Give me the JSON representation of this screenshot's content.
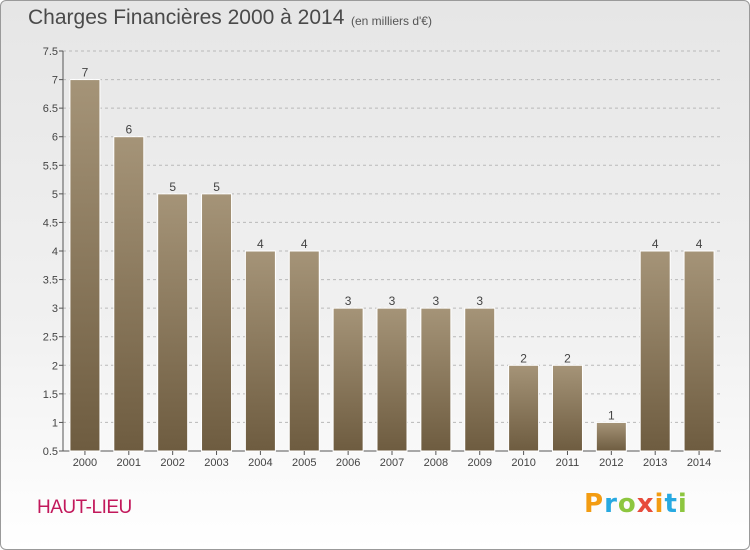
{
  "header": {
    "title": "Charges Financières 2000 à 2014",
    "unit": "(en milliers d'€)"
  },
  "commune": "HAUT-LIEU",
  "logo": {
    "text": "Proxiti",
    "letters": [
      {
        "ch": "P",
        "color": "#f39c12"
      },
      {
        "ch": "r",
        "color": "#27a9e1"
      },
      {
        "ch": "o",
        "color": "#8dc63f"
      },
      {
        "ch": "x",
        "color": "#e74c3c"
      },
      {
        "ch": "i",
        "color": "#f39c12"
      },
      {
        "ch": "t",
        "color": "#27a9e1"
      },
      {
        "ch": "i",
        "color": "#8dc63f"
      }
    ]
  },
  "colors": {
    "bar_top": "#a59478",
    "bar_bottom": "#6e5c40",
    "grid": "#b9b9b9",
    "axis": "#555555"
  },
  "chart_data": {
    "type": "bar",
    "categories": [
      "2000",
      "2001",
      "2002",
      "2003",
      "2004",
      "2005",
      "2006",
      "2007",
      "2008",
      "2009",
      "2010",
      "2011",
      "2012",
      "2013",
      "2014"
    ],
    "values": [
      7,
      6,
      5,
      5,
      4,
      4,
      3,
      3,
      3,
      3,
      2,
      2,
      1,
      4,
      4
    ],
    "ylim": [
      0.5,
      7.5
    ],
    "yticks": [
      0.5,
      1,
      1.5,
      2,
      2.5,
      3,
      3.5,
      4,
      4.5,
      5,
      5.5,
      6,
      6.5,
      7,
      7.5
    ],
    "ytick_labels": [
      "0.5",
      "1",
      "1.5",
      "2",
      "2.5",
      "3",
      "3.5",
      "4",
      "4.5",
      "5",
      "5.5",
      "6",
      "6.5",
      "7",
      "7.5"
    ],
    "grid": true,
    "grid_style": "dashed-horizontal"
  }
}
